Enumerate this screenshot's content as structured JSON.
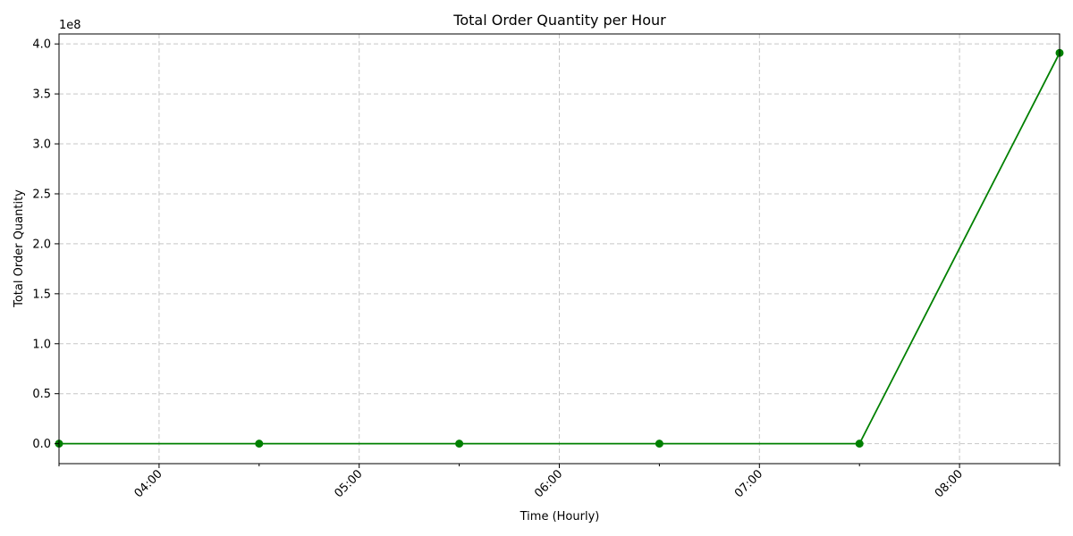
{
  "chart_data": {
    "type": "line",
    "title": "Total Order Quantity per Hour",
    "xlabel": "Time (Hourly)",
    "ylabel": "Total Order Quantity",
    "y_offset_label": "1e8",
    "x_tick_labels": [
      "04:00",
      "05:00",
      "06:00",
      "07:00",
      "08:00"
    ],
    "x_ticks": [
      "04:00",
      "05:00",
      "06:00",
      "07:00",
      "08:00"
    ],
    "y_ticks": [
      0.0,
      0.5,
      1.0,
      1.5,
      2.0,
      2.5,
      3.0,
      3.5,
      4.0
    ],
    "y_tick_labels": [
      "0.0",
      "0.5",
      "1.0",
      "1.5",
      "2.0",
      "2.5",
      "3.0",
      "3.5",
      "4.0"
    ],
    "xlim": [
      "03:30",
      "08:30"
    ],
    "ylim": [
      -0.2,
      4.1
    ],
    "grid": true,
    "series": [
      {
        "color": "#008000",
        "marker": "circle",
        "x": [
          "03:30",
          "04:30",
          "05:30",
          "06:30",
          "07:30",
          "08:30"
        ],
        "y": [
          0.0,
          0.0,
          0.0,
          0.0,
          0.0,
          3.91
        ]
      }
    ]
  }
}
